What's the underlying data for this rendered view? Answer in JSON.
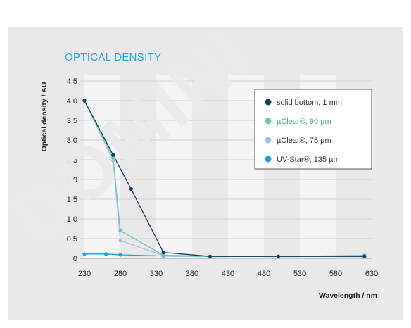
{
  "chart_data": {
    "type": "line",
    "title": "OPTICAL DENSITY",
    "xlabel": "Wavelength / nm",
    "ylabel": "Optical density / AU",
    "xlim": [
      230,
      630
    ],
    "ylim": [
      0,
      4.5
    ],
    "xticks": [
      230,
      280,
      330,
      380,
      430,
      480,
      530,
      580,
      630
    ],
    "xtick_labels": [
      "230",
      "280",
      "330",
      "380",
      "430",
      "480",
      "530",
      "580",
      "630"
    ],
    "yticks": [
      0,
      0.5,
      1.0,
      1.5,
      2.0,
      2.5,
      3.0,
      3.5,
      4.0,
      4.5
    ],
    "ytick_labels": [
      "0",
      "0,5",
      "1,0",
      "1,5",
      "2,0",
      "2,5",
      "3,0",
      "3,5",
      "4,0",
      "4,5"
    ],
    "grid": true,
    "legend_position": "top-right",
    "series": [
      {
        "name": "solid bottom, 1 mm",
        "color": "#123e58",
        "points": [
          [
            230,
            4.0
          ],
          [
            270,
            2.62
          ],
          [
            295,
            1.76
          ],
          [
            340,
            0.15
          ],
          [
            405,
            0.05
          ],
          [
            500,
            0.05
          ],
          [
            620,
            0.05
          ]
        ]
      },
      {
        "name": "µClear®, 90 µm",
        "color": "#6dc3b9",
        "points": [
          [
            230,
            4.0
          ],
          [
            270,
            2.55
          ],
          [
            280,
            0.7
          ],
          [
            340,
            0.08
          ],
          [
            405,
            0.05
          ],
          [
            500,
            0.05
          ],
          [
            620,
            0.05
          ]
        ]
      },
      {
        "name": "µClear®, 75 µm",
        "color": "#9fc4e3",
        "points": [
          [
            230,
            4.0
          ],
          [
            270,
            2.48
          ],
          [
            280,
            0.45
          ],
          [
            340,
            0.07
          ],
          [
            405,
            0.05
          ],
          [
            500,
            0.05
          ],
          [
            620,
            0.05
          ]
        ]
      },
      {
        "name": "UV-Star®, 135 µm",
        "color": "#1aa0de",
        "points": [
          [
            230,
            0.11
          ],
          [
            260,
            0.11
          ],
          [
            280,
            0.09
          ],
          [
            340,
            0.06
          ],
          [
            405,
            0.05
          ],
          [
            500,
            0.05
          ],
          [
            620,
            0.07
          ]
        ]
      }
    ]
  },
  "colors": {
    "title": "#2aa5dc",
    "axis_text": "#222222",
    "gridline": "#cfcfcf",
    "panel_bg": "#e9e9e9",
    "band_bg": "#f4f4f4"
  },
  "watermark": {
    "text": "DOMINI"
  }
}
